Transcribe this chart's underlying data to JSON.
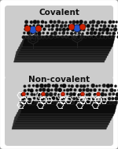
{
  "background_color": "#ffffff",
  "border_color": "#999999",
  "panel_bg_color": "#cccccc",
  "covalent_label": "Covalent",
  "noncovalent_label": "Non-covalent",
  "label_fontsize": 7.5,
  "label_fontweight": "bold",
  "fig_width": 1.5,
  "fig_height": 1.89,
  "dpi": 100,
  "bp_color": "#111111",
  "bp_dot_color": "#0a0a0a",
  "bp_edge_color": "#444444",
  "molecule_color_blue": "#2255cc",
  "molecule_color_red": "#cc2200",
  "white_color": "#ffffff",
  "gray_mol": "#888888",
  "bond_color": "#222222"
}
